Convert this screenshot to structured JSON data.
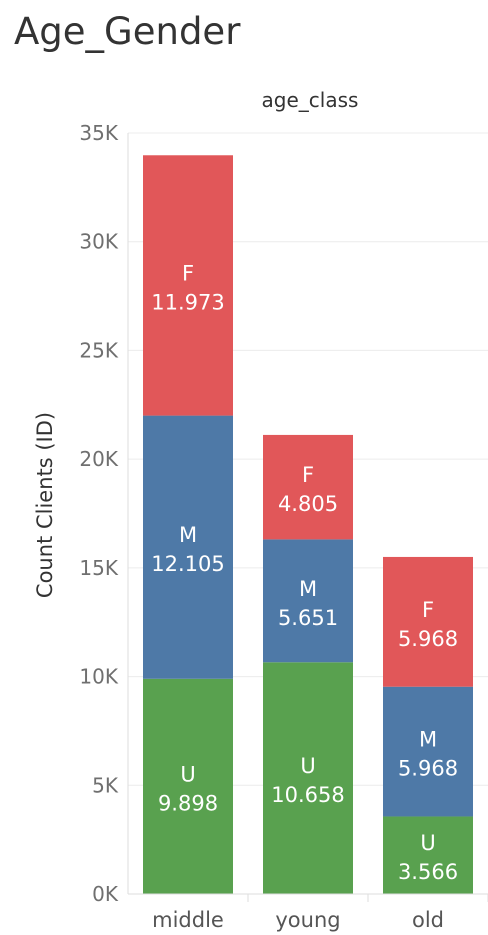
{
  "page": {
    "title": "Age_Gender"
  },
  "chart_data": {
    "type": "bar",
    "stacked": true,
    "title": "Age_Gender",
    "column_header": "age_class",
    "ylabel": "Count Clients (ID)",
    "categories": [
      "middle",
      "young",
      "old"
    ],
    "ylim": [
      0,
      35000
    ],
    "yticks": [
      0,
      5000,
      10000,
      15000,
      20000,
      25000,
      30000,
      35000
    ],
    "ytick_labels": [
      "0K",
      "5K",
      "10K",
      "15K",
      "20K",
      "25K",
      "30K",
      "35K"
    ],
    "grid": true,
    "series": [
      {
        "name": "U",
        "color": "#59a14f",
        "values": [
          9898,
          10658,
          3566
        ],
        "labels": [
          "9.898",
          "10.658",
          "3.566"
        ]
      },
      {
        "name": "M",
        "color": "#4e79a7",
        "values": [
          12105,
          5651,
          5968
        ],
        "labels": [
          "12.105",
          "5.651",
          "5.968"
        ]
      },
      {
        "name": "F",
        "color": "#e15759",
        "values": [
          11973,
          4805,
          5968
        ],
        "labels": [
          "11.973",
          "4.805",
          "5.968"
        ]
      }
    ]
  }
}
